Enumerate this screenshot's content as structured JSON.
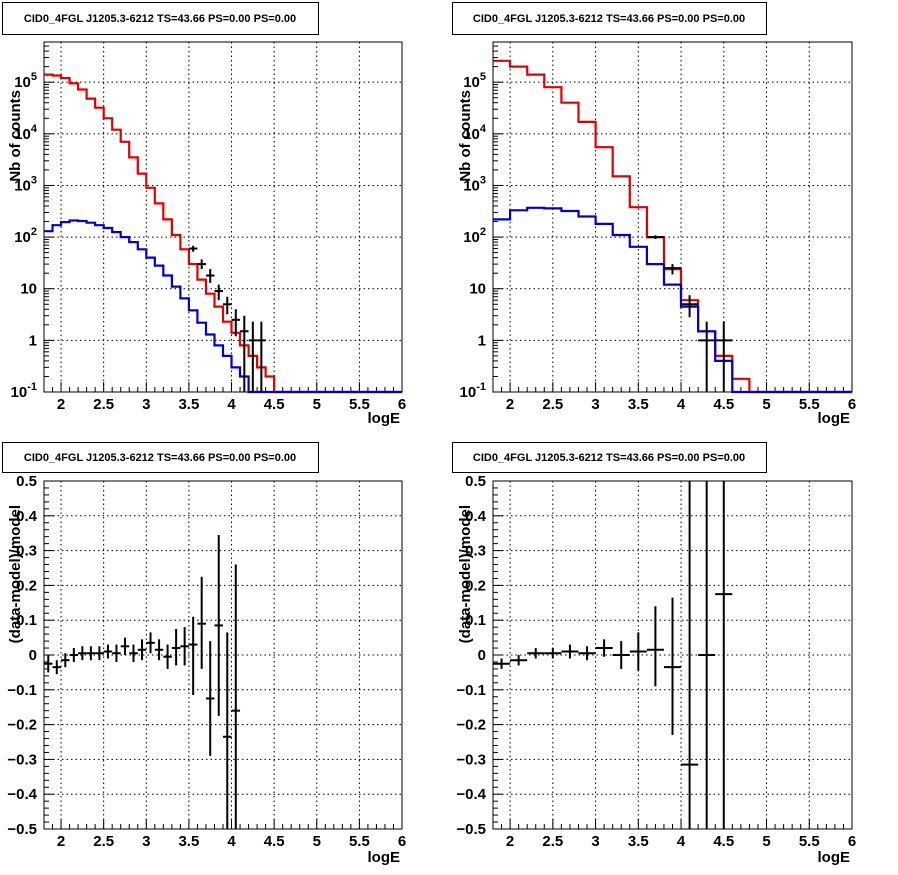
{
  "chart_data": [
    {
      "type": "line",
      "title": "CID0_4FGL J1205.3-6212 TS=43.66 PS=0.00 PS=0.00",
      "xlabel": "logE",
      "ylabel": "Nb of counts",
      "xlim": [
        1.8,
        6
      ],
      "ylim": [
        0.1,
        600000
      ],
      "yscale": "log",
      "grid": true,
      "xticks": [
        2,
        2.5,
        3,
        3.5,
        4,
        4.5,
        5,
        5.5,
        6
      ],
      "xtick_labels": [
        "2",
        "2.5",
        "3",
        "3.5",
        "4",
        "4.5",
        "5",
        "5.5",
        "6"
      ],
      "yticks": [
        0.1,
        1,
        10,
        100,
        1000,
        10000,
        100000
      ],
      "ytick_labels": [
        "10^-1",
        "1",
        "10",
        "10^2",
        "10^3",
        "10^4",
        "10^5"
      ],
      "bin_edges": [
        1.8,
        1.9,
        2.0,
        2.1,
        2.2,
        2.3,
        2.4,
        2.5,
        2.6,
        2.7,
        2.8,
        2.9,
        3.0,
        3.1,
        3.2,
        3.3,
        3.4,
        3.5,
        3.6,
        3.7,
        3.8,
        3.9,
        4.0,
        4.1,
        4.2,
        4.3,
        4.4,
        4.5,
        4.6,
        4.7,
        4.8,
        4.9,
        5.0,
        5.1,
        5.2,
        5.3,
        5.4,
        5.5,
        5.6,
        5.7,
        5.8,
        5.9,
        6.0
      ],
      "series": [
        {
          "color": "#e00000",
          "kind": "step",
          "values": [
            140000,
            135000,
            120000,
            95000,
            72000,
            48000,
            32000,
            20000,
            12000,
            7000,
            3500,
            1700,
            900,
            450,
            220,
            110,
            58,
            30,
            15,
            8,
            4.5,
            2.3,
            1.4,
            0.8,
            0.5,
            0.3,
            0.2,
            0.1,
            0.08,
            0.08,
            0.08,
            0.08,
            0.08,
            0.08,
            0.08,
            0.08,
            0.08,
            0.08,
            0.08,
            0.08,
            0.08,
            0.08
          ]
        },
        {
          "color": "#0000d0",
          "kind": "step",
          "values": [
            130,
            170,
            195,
            210,
            205,
            190,
            170,
            150,
            125,
            100,
            80,
            58,
            40,
            28,
            18,
            11,
            6.5,
            3.8,
            2.2,
            1.3,
            0.8,
            0.5,
            0.3,
            0.2,
            0.1,
            0.1,
            0.1,
            0.1,
            0.1,
            0.1,
            0.1,
            0.1,
            0.1,
            0.1,
            0.1,
            0.1,
            0.1,
            0.1,
            0.1,
            0.1,
            0.1,
            0.1
          ]
        },
        {
          "color": "#000000",
          "kind": "points",
          "x": [
            3.55,
            3.65,
            3.75,
            3.85,
            3.95,
            4.05,
            4.15,
            4.25,
            4.35
          ],
          "xerr": 0.05,
          "y": [
            60,
            30,
            18,
            9,
            5,
            2.5,
            1.5,
            1,
            1
          ],
          "ylo": [
            52,
            24,
            13,
            6,
            3.2,
            1.2,
            0.05,
            0.05,
            0.05
          ],
          "yhi": [
            68,
            37,
            24,
            12,
            7,
            4,
            3,
            2.3,
            2.3
          ]
        }
      ]
    },
    {
      "type": "line",
      "title": "CID0_4FGL J1205.3-6212 TS=43.66 PS=0.00 PS=0.00",
      "xlabel": "logE",
      "ylabel": "Nb of counts",
      "xlim": [
        1.8,
        6
      ],
      "ylim": [
        0.1,
        600000
      ],
      "yscale": "log",
      "grid": true,
      "xticks": [
        2,
        2.5,
        3,
        3.5,
        4,
        4.5,
        5,
        5.5,
        6
      ],
      "xtick_labels": [
        "2",
        "2.5",
        "3",
        "3.5",
        "4",
        "4.5",
        "5",
        "5.5",
        "6"
      ],
      "yticks": [
        0.1,
        1,
        10,
        100,
        1000,
        10000,
        100000
      ],
      "ytick_labels": [
        "10^-1",
        "1",
        "10",
        "10^2",
        "10^3",
        "10^4",
        "10^5"
      ],
      "bin_edges": [
        1.8,
        2.0,
        2.2,
        2.4,
        2.6,
        2.8,
        3.0,
        3.2,
        3.4,
        3.6,
        3.8,
        4.0,
        4.2,
        4.4,
        4.6,
        4.8,
        5.0,
        5.2,
        5.4,
        5.6,
        5.8,
        6.0
      ],
      "series": [
        {
          "color": "#e00000",
          "kind": "step",
          "values": [
            260000,
            200000,
            140000,
            80000,
            40000,
            17000,
            5500,
            1500,
            380,
            100,
            24,
            6,
            1.5,
            0.5,
            0.18,
            0.08,
            0.08,
            0.08,
            0.08,
            0.08,
            0.08
          ]
        },
        {
          "color": "#0000d0",
          "kind": "step",
          "values": [
            220,
            330,
            370,
            360,
            320,
            250,
            180,
            110,
            65,
            30,
            12,
            4.5,
            1.5,
            0.4,
            0.1,
            0.1,
            0.1,
            0.1,
            0.1,
            0.1,
            0.1
          ]
        },
        {
          "color": "#000000",
          "kind": "points",
          "x": [
            3.7,
            3.9,
            4.1,
            4.3,
            4.5
          ],
          "xerr": 0.1,
          "y": [
            100,
            25,
            5,
            1,
            1
          ],
          "ylo": [
            92,
            19,
            2.8,
            0.05,
            0.05
          ],
          "yhi": [
            108,
            30,
            7.5,
            2.3,
            2.3
          ]
        }
      ]
    },
    {
      "type": "scatter",
      "title": "CID0_4FGL J1205.3-6212 TS=43.66 PS=0.00 PS=0.00",
      "xlabel": "logE",
      "ylabel": "(data-model)/model",
      "xlim": [
        1.8,
        6
      ],
      "ylim": [
        -0.5,
        0.5
      ],
      "grid": true,
      "xticks": [
        2,
        2.5,
        3,
        3.5,
        4,
        4.5,
        5,
        5.5,
        6
      ],
      "xtick_labels": [
        "2",
        "2.5",
        "3",
        "3.5",
        "4",
        "4.5",
        "5",
        "5.5",
        "6"
      ],
      "yticks": [
        -0.5,
        -0.4,
        -0.3,
        -0.2,
        -0.1,
        0,
        0.1,
        0.2,
        0.3,
        0.4,
        0.5
      ],
      "ytick_labels": [
        "−0.5",
        "−0.4",
        "−0.3",
        "−0.2",
        "−0.1",
        "0",
        "0.1",
        "0.2",
        "0.3",
        "0.4",
        "0.5"
      ],
      "series": [
        {
          "color": "#000000",
          "kind": "points",
          "x": [
            1.85,
            1.95,
            2.05,
            2.15,
            2.25,
            2.35,
            2.45,
            2.55,
            2.65,
            2.75,
            2.85,
            2.95,
            3.05,
            3.15,
            3.25,
            3.35,
            3.45,
            3.55,
            3.65,
            3.75,
            3.85,
            3.95,
            4.05
          ],
          "xerr": 0.05,
          "y": [
            -0.025,
            -0.035,
            -0.015,
            0.0,
            0.005,
            0.005,
            0.005,
            0.01,
            0.005,
            0.025,
            0.005,
            0.015,
            0.035,
            0.015,
            -0.005,
            0.02,
            0.025,
            0.03,
            0.09,
            -0.125,
            0.085,
            -0.235,
            -0.16
          ],
          "ylo": [
            -0.05,
            -0.055,
            -0.035,
            -0.02,
            -0.015,
            -0.015,
            -0.015,
            -0.01,
            -0.02,
            0.0,
            -0.02,
            -0.015,
            0.005,
            -0.015,
            -0.04,
            -0.03,
            -0.03,
            -0.115,
            -0.04,
            -0.29,
            -0.175,
            -0.5,
            -0.5
          ],
          "yhi": [
            0.0,
            -0.015,
            0.005,
            0.02,
            0.025,
            0.025,
            0.025,
            0.03,
            0.03,
            0.05,
            0.03,
            0.045,
            0.065,
            0.045,
            0.03,
            0.075,
            0.08,
            0.11,
            0.225,
            0.04,
            0.345,
            0.065,
            0.26
          ]
        }
      ]
    },
    {
      "type": "scatter",
      "title": "CID0_4FGL J1205.3-6212 TS=43.66 PS=0.00 PS=0.00",
      "xlabel": "logE",
      "ylabel": "(data-model)/model",
      "xlim": [
        1.8,
        6
      ],
      "ylim": [
        -0.5,
        0.5
      ],
      "grid": true,
      "xticks": [
        2,
        2.5,
        3,
        3.5,
        4,
        4.5,
        5,
        5.5,
        6
      ],
      "xtick_labels": [
        "2",
        "2.5",
        "3",
        "3.5",
        "4",
        "4.5",
        "5",
        "5.5",
        "6"
      ],
      "yticks": [
        -0.5,
        -0.4,
        -0.3,
        -0.2,
        -0.1,
        0,
        0.1,
        0.2,
        0.3,
        0.4,
        0.5
      ],
      "ytick_labels": [
        "−0.5",
        "−0.4",
        "−0.3",
        "−0.2",
        "−0.1",
        "0",
        "0.1",
        "0.2",
        "0.3",
        "0.4",
        "0.5"
      ],
      "series": [
        {
          "color": "#000000",
          "kind": "points",
          "x": [
            1.9,
            2.1,
            2.3,
            2.5,
            2.7,
            2.9,
            3.1,
            3.3,
            3.5,
            3.7,
            3.9,
            4.1,
            4.3,
            4.5
          ],
          "xerr": 0.1,
          "y": [
            -0.025,
            -0.015,
            0.005,
            0.005,
            0.01,
            0.005,
            0.02,
            0.0,
            0.01,
            0.015,
            -0.035,
            -0.315,
            0.0,
            0.175
          ],
          "ylo": [
            -0.04,
            -0.03,
            -0.01,
            -0.01,
            -0.01,
            -0.015,
            -0.005,
            -0.04,
            -0.045,
            -0.09,
            -0.23,
            -0.5,
            -0.5,
            -0.5
          ],
          "yhi": [
            -0.01,
            0.0,
            0.02,
            0.02,
            0.03,
            0.025,
            0.045,
            0.04,
            0.065,
            0.14,
            0.165,
            0.5,
            0.5,
            0.5
          ]
        }
      ]
    }
  ]
}
